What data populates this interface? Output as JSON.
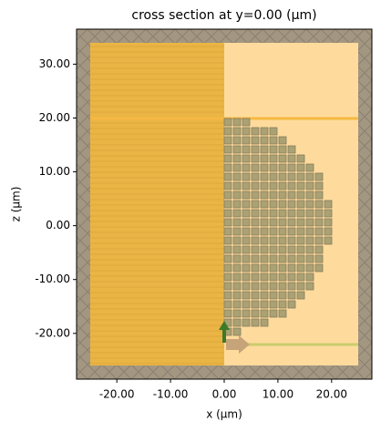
{
  "chart_data": {
    "type": "cross-section",
    "title": "cross section at y=0.00 (μm)",
    "xlabel": "x (μm)",
    "ylabel": "z (μm)",
    "xlim": [
      -27.5,
      27.5
    ],
    "ylim": [
      -28.5,
      36.5
    ],
    "xticks": [
      {
        "value": -20,
        "label": "-20.00"
      },
      {
        "value": -10,
        "label": "-10.00"
      },
      {
        "value": 0,
        "label": "0.00"
      },
      {
        "value": 10,
        "label": "10.00"
      },
      {
        "value": 20,
        "label": "20.00"
      }
    ],
    "yticks": [
      {
        "value": -20,
        "label": "-20.00"
      },
      {
        "value": -10,
        "label": "-10.00"
      },
      {
        "value": 0,
        "label": "0.00"
      },
      {
        "value": 10,
        "label": "10.00"
      },
      {
        "value": 20,
        "label": "20.00"
      },
      {
        "value": 30,
        "label": "30.00"
      }
    ]
  }
}
